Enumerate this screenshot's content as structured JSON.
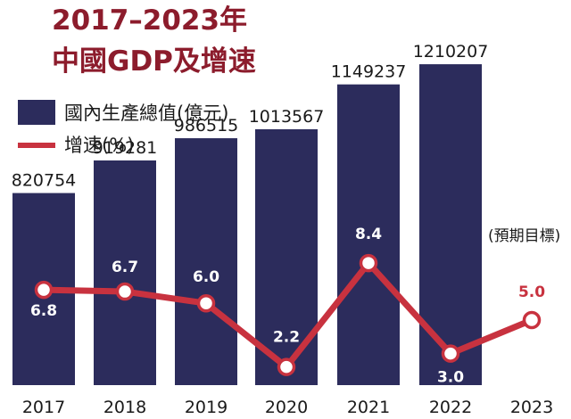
{
  "chart_data": {
    "type": "bar",
    "title": "2017–2023年",
    "subtitle": "中國GDP及增速",
    "categories": [
      "2017",
      "2018",
      "2019",
      "2020",
      "2021",
      "2022",
      "2023"
    ],
    "series": [
      {
        "name": "國內生產總值(億元)",
        "type": "bar",
        "values": [
          820754,
          919281,
          986515,
          1013567,
          1149237,
          1210207,
          null
        ],
        "value_labels": [
          "820754",
          "919281",
          "986515",
          "1013567",
          "1149237",
          "1210207",
          ""
        ]
      },
      {
        "name": "增速(%)",
        "type": "line",
        "values": [
          6.8,
          6.7,
          6.0,
          2.2,
          8.4,
          3.0,
          5.0
        ],
        "value_labels": [
          "6.8",
          "6.7",
          "6.0",
          "2.2",
          "8.4",
          "3.0",
          "5.0"
        ]
      }
    ],
    "annotation": "(預期目標)",
    "legend_position": "top-left",
    "grid": false,
    "colors": {
      "bar": "#2c2c5c",
      "line": "#c8323f",
      "title": "#8c1c2c"
    }
  }
}
